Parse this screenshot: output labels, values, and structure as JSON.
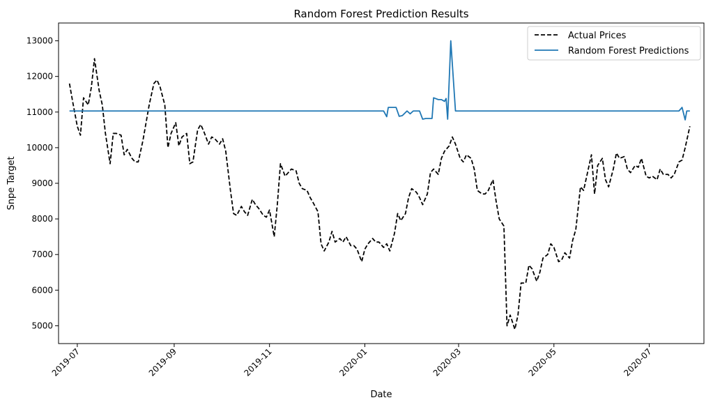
{
  "chart_data": {
    "type": "line",
    "title": "Random Forest Prediction Results",
    "xlabel": "Date",
    "ylabel": "Snpe Target",
    "xlim": [
      "2019-06-19",
      "2020-08-05"
    ],
    "ylim": [
      4500,
      13500
    ],
    "y_ticks": [
      5000,
      6000,
      7000,
      8000,
      9000,
      10000,
      11000,
      12000,
      13000
    ],
    "x_ticks": [
      {
        "date": "2019-07-01",
        "label": "2019-07"
      },
      {
        "date": "2019-09-01",
        "label": "2019-09"
      },
      {
        "date": "2019-11-01",
        "label": "2019-11"
      },
      {
        "date": "2020-01-01",
        "label": "2020-01"
      },
      {
        "date": "2020-03-01",
        "label": "2020-03"
      },
      {
        "date": "2020-05-01",
        "label": "2020-05"
      },
      {
        "date": "2020-07-01",
        "label": "2020-07"
      }
    ],
    "legend_position": "top-right",
    "grid": false,
    "series": [
      {
        "name": "Actual Prices",
        "color": "#000000",
        "style": "dashed",
        "points": [
          [
            "2019-06-26",
            11800
          ],
          [
            "2019-06-28",
            11300
          ],
          [
            "2019-07-01",
            10600
          ],
          [
            "2019-07-03",
            10350
          ],
          [
            "2019-07-05",
            11400
          ],
          [
            "2019-07-08",
            11200
          ],
          [
            "2019-07-10",
            11700
          ],
          [
            "2019-07-12",
            12500
          ],
          [
            "2019-07-15",
            11600
          ],
          [
            "2019-07-17",
            11200
          ],
          [
            "2019-07-19",
            10400
          ],
          [
            "2019-07-22",
            9550
          ],
          [
            "2019-07-24",
            10400
          ],
          [
            "2019-07-26",
            10400
          ],
          [
            "2019-07-29",
            10350
          ],
          [
            "2019-07-31",
            9800
          ],
          [
            "2019-08-02",
            9950
          ],
          [
            "2019-08-05",
            9700
          ],
          [
            "2019-08-07",
            9600
          ],
          [
            "2019-08-09",
            9600
          ],
          [
            "2019-08-12",
            10200
          ],
          [
            "2019-08-14",
            10700
          ],
          [
            "2019-08-16",
            11200
          ],
          [
            "2019-08-19",
            11800
          ],
          [
            "2019-08-21",
            11900
          ],
          [
            "2019-08-23",
            11700
          ],
          [
            "2019-08-26",
            11200
          ],
          [
            "2019-08-28",
            10000
          ],
          [
            "2019-08-30",
            10400
          ],
          [
            "2019-09-02",
            10700
          ],
          [
            "2019-09-04",
            10050
          ],
          [
            "2019-09-06",
            10300
          ],
          [
            "2019-09-09",
            10400
          ],
          [
            "2019-09-11",
            9550
          ],
          [
            "2019-09-13",
            9600
          ],
          [
            "2019-09-16",
            10500
          ],
          [
            "2019-09-18",
            10650
          ],
          [
            "2019-09-20",
            10450
          ],
          [
            "2019-09-23",
            10100
          ],
          [
            "2019-09-25",
            10300
          ],
          [
            "2019-09-27",
            10250
          ],
          [
            "2019-09-30",
            10100
          ],
          [
            "2019-10-02",
            10250
          ],
          [
            "2019-10-04",
            9900
          ],
          [
            "2019-10-07",
            8800
          ],
          [
            "2019-10-09",
            8150
          ],
          [
            "2019-10-11",
            8100
          ],
          [
            "2019-10-14",
            8350
          ],
          [
            "2019-10-16",
            8200
          ],
          [
            "2019-10-18",
            8100
          ],
          [
            "2019-10-21",
            8550
          ],
          [
            "2019-10-23",
            8400
          ],
          [
            "2019-10-25",
            8300
          ],
          [
            "2019-10-28",
            8100
          ],
          [
            "2019-10-30",
            8050
          ],
          [
            "2019-11-01",
            8250
          ],
          [
            "2019-11-04",
            7500
          ],
          [
            "2019-11-06",
            8400
          ],
          [
            "2019-11-08",
            9550
          ],
          [
            "2019-11-11",
            9200
          ],
          [
            "2019-11-13",
            9300
          ],
          [
            "2019-11-15",
            9400
          ],
          [
            "2019-11-18",
            9350
          ],
          [
            "2019-11-20",
            9000
          ],
          [
            "2019-11-22",
            8850
          ],
          [
            "2019-11-25",
            8800
          ],
          [
            "2019-11-27",
            8600
          ],
          [
            "2019-11-29",
            8450
          ],
          [
            "2019-12-02",
            8200
          ],
          [
            "2019-12-04",
            7300
          ],
          [
            "2019-12-06",
            7100
          ],
          [
            "2019-12-09",
            7350
          ],
          [
            "2019-12-11",
            7650
          ],
          [
            "2019-12-13",
            7350
          ],
          [
            "2019-12-16",
            7450
          ],
          [
            "2019-12-18",
            7350
          ],
          [
            "2019-12-20",
            7500
          ],
          [
            "2019-12-23",
            7250
          ],
          [
            "2019-12-25",
            7250
          ],
          [
            "2019-12-27",
            7150
          ],
          [
            "2019-12-30",
            6800
          ],
          [
            "2020-01-01",
            7150
          ],
          [
            "2020-01-03",
            7300
          ],
          [
            "2020-01-06",
            7450
          ],
          [
            "2020-01-08",
            7350
          ],
          [
            "2020-01-10",
            7350
          ],
          [
            "2020-01-13",
            7200
          ],
          [
            "2020-01-15",
            7300
          ],
          [
            "2020-01-17",
            7100
          ],
          [
            "2020-01-20",
            7600
          ],
          [
            "2020-01-22",
            8150
          ],
          [
            "2020-01-24",
            7950
          ],
          [
            "2020-01-27",
            8150
          ],
          [
            "2020-01-29",
            8600
          ],
          [
            "2020-01-31",
            8850
          ],
          [
            "2020-02-03",
            8750
          ],
          [
            "2020-02-05",
            8600
          ],
          [
            "2020-02-07",
            8400
          ],
          [
            "2020-02-10",
            8700
          ],
          [
            "2020-02-12",
            9300
          ],
          [
            "2020-02-14",
            9400
          ],
          [
            "2020-02-17",
            9250
          ],
          [
            "2020-02-19",
            9700
          ],
          [
            "2020-02-21",
            9900
          ],
          [
            "2020-02-24",
            10050
          ],
          [
            "2020-02-26",
            10300
          ],
          [
            "2020-02-28",
            10100
          ],
          [
            "2020-03-02",
            9700
          ],
          [
            "2020-03-04",
            9600
          ],
          [
            "2020-03-06",
            9800
          ],
          [
            "2020-03-09",
            9700
          ],
          [
            "2020-03-11",
            9400
          ],
          [
            "2020-03-13",
            8800
          ],
          [
            "2020-03-16",
            8700
          ],
          [
            "2020-03-18",
            8700
          ],
          [
            "2020-03-20",
            8800
          ],
          [
            "2020-03-23",
            9100
          ],
          [
            "2020-03-25",
            8500
          ],
          [
            "2020-03-27",
            8000
          ],
          [
            "2020-03-30",
            7800
          ],
          [
            "2020-04-01",
            5000
          ],
          [
            "2020-04-03",
            5300
          ],
          [
            "2020-04-06",
            4900
          ],
          [
            "2020-04-08",
            5300
          ],
          [
            "2020-04-10",
            6200
          ],
          [
            "2020-04-13",
            6200
          ],
          [
            "2020-04-15",
            6700
          ],
          [
            "2020-04-17",
            6600
          ],
          [
            "2020-04-20",
            6250
          ],
          [
            "2020-04-22",
            6500
          ],
          [
            "2020-04-24",
            6900
          ],
          [
            "2020-04-27",
            7000
          ],
          [
            "2020-04-29",
            7300
          ],
          [
            "2020-05-01",
            7200
          ],
          [
            "2020-05-04",
            6800
          ],
          [
            "2020-05-06",
            6850
          ],
          [
            "2020-05-08",
            7050
          ],
          [
            "2020-05-11",
            6900
          ],
          [
            "2020-05-13",
            7400
          ],
          [
            "2020-05-15",
            7700
          ],
          [
            "2020-05-18",
            8900
          ],
          [
            "2020-05-20",
            8800
          ],
          [
            "2020-05-22",
            9200
          ],
          [
            "2020-05-25",
            9800
          ],
          [
            "2020-05-27",
            8700
          ],
          [
            "2020-05-29",
            9500
          ],
          [
            "2020-06-01",
            9700
          ],
          [
            "2020-06-03",
            9100
          ],
          [
            "2020-06-05",
            8900
          ],
          [
            "2020-06-08",
            9400
          ],
          [
            "2020-06-10",
            9850
          ],
          [
            "2020-06-12",
            9700
          ],
          [
            "2020-06-15",
            9750
          ],
          [
            "2020-06-17",
            9400
          ],
          [
            "2020-06-19",
            9300
          ],
          [
            "2020-06-22",
            9500
          ],
          [
            "2020-06-24",
            9450
          ],
          [
            "2020-06-26",
            9700
          ],
          [
            "2020-06-29",
            9200
          ],
          [
            "2020-07-01",
            9150
          ],
          [
            "2020-07-03",
            9200
          ],
          [
            "2020-07-06",
            9100
          ],
          [
            "2020-07-08",
            9400
          ],
          [
            "2020-07-10",
            9250
          ],
          [
            "2020-07-13",
            9250
          ],
          [
            "2020-07-15",
            9150
          ],
          [
            "2020-07-17",
            9250
          ],
          [
            "2020-07-20",
            9600
          ],
          [
            "2020-07-22",
            9650
          ],
          [
            "2020-07-24",
            10000
          ],
          [
            "2020-07-27",
            10600
          ]
        ]
      },
      {
        "name": "Random Forest Predictions",
        "color": "#1f77b4",
        "style": "solid",
        "points": [
          [
            "2019-06-26",
            11030
          ],
          [
            "2020-01-13",
            11030
          ],
          [
            "2020-01-15",
            10870
          ],
          [
            "2020-01-16",
            11130
          ],
          [
            "2020-01-21",
            11130
          ],
          [
            "2020-01-23",
            10880
          ],
          [
            "2020-01-25",
            10900
          ],
          [
            "2020-01-28",
            11030
          ],
          [
            "2020-01-30",
            10950
          ],
          [
            "2020-02-01",
            11030
          ],
          [
            "2020-02-05",
            11030
          ],
          [
            "2020-02-07",
            10800
          ],
          [
            "2020-02-09",
            10820
          ],
          [
            "2020-02-13",
            10820
          ],
          [
            "2020-02-14",
            11400
          ],
          [
            "2020-02-17",
            11350
          ],
          [
            "2020-02-19",
            11350
          ],
          [
            "2020-02-21",
            11300
          ],
          [
            "2020-02-22",
            11380
          ],
          [
            "2020-02-23",
            10800
          ],
          [
            "2020-02-25",
            13000
          ],
          [
            "2020-02-28",
            11030
          ],
          [
            "2020-07-20",
            11030
          ],
          [
            "2020-07-22",
            11130
          ],
          [
            "2020-07-24",
            10780
          ],
          [
            "2020-07-25",
            11030
          ],
          [
            "2020-07-27",
            11030
          ]
        ]
      }
    ]
  }
}
